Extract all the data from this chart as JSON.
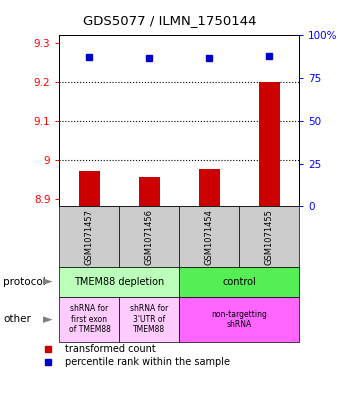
{
  "title": "GDS5077 / ILMN_1750144",
  "samples": [
    "GSM1071457",
    "GSM1071456",
    "GSM1071454",
    "GSM1071455"
  ],
  "transformed_counts": [
    8.97,
    8.955,
    8.975,
    9.2
  ],
  "percentile_rank_yvals": [
    9.264,
    9.262,
    9.262,
    9.267
  ],
  "ylim": [
    8.88,
    9.32
  ],
  "yticks": [
    8.9,
    9.0,
    9.1,
    9.2,
    9.3
  ],
  "ytick_labels": [
    "8.9",
    "9",
    "9.1",
    "9.2",
    "9.3"
  ],
  "right_yticks": [
    0,
    25,
    50,
    75,
    100
  ],
  "right_ytick_labels": [
    "0",
    "25",
    "50",
    "75",
    "100%"
  ],
  "bar_color": "#cc0000",
  "dot_color": "#0000cc",
  "bar_bottom": 8.88,
  "prot_groups": [
    {
      "label": "TMEM88 depletion",
      "color": "#bbffbb",
      "start": 0,
      "end": 2
    },
    {
      "label": "control",
      "color": "#55ee55",
      "start": 2,
      "end": 4
    }
  ],
  "other_groups": [
    {
      "label": "shRNA for\nfirst exon\nof TMEM88",
      "color": "#ffccff",
      "start": 0,
      "end": 1
    },
    {
      "label": "shRNA for\n3'UTR of\nTMEM88",
      "color": "#ffccff",
      "start": 1,
      "end": 2
    },
    {
      "label": "non-targetting\nshRNA",
      "color": "#ff66ff",
      "start": 2,
      "end": 4
    }
  ],
  "sample_box_color": "#cccccc",
  "grid_dotted_ticks": [
    9.0,
    9.1,
    9.2
  ]
}
